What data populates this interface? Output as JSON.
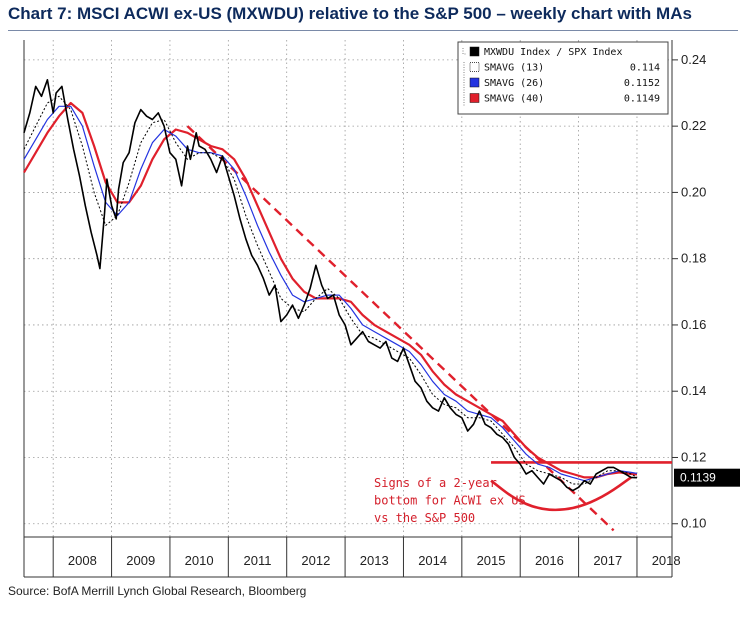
{
  "title": "Chart 7: MSCI ACWI ex-US (MXWDU) relative to the S&P 500 – weekly chart with MAs",
  "source": "Source: BofA Merrill Lynch Global Research, Bloomberg",
  "colors": {
    "title": "#0d2a5c",
    "ratio": "#000000",
    "sma13": "#000000",
    "sma26": "#2434e0",
    "sma40": "#e0202c",
    "annotation": "#e0202c",
    "last_value_box": "#000000"
  },
  "chart_data": {
    "type": "line",
    "x_range": [
      2007.5,
      2018.6
    ],
    "ylim": [
      0.096,
      0.246
    ],
    "y_ticks": [
      0.1,
      0.12,
      0.14,
      0.16,
      0.18,
      0.2,
      0.22,
      0.24
    ],
    "y_tick_labels": [
      "0.10",
      "0.12",
      "0.14",
      "0.16",
      "0.18",
      "0.20",
      "0.22",
      "0.24"
    ],
    "x_tick_labels": [
      "2008",
      "2009",
      "2010",
      "2011",
      "2012",
      "2013",
      "2014",
      "2015",
      "2016",
      "2017",
      "2018"
    ],
    "grid": true,
    "legend_position": "top-right",
    "legend": [
      {
        "name": "MXWDU Index / SPX Index",
        "value": ""
      },
      {
        "name": "SMAVG (13)",
        "value": "0.114"
      },
      {
        "name": "SMAVG (26)",
        "value": "0.1152"
      },
      {
        "name": "SMAVG (40)",
        "value": "0.1149"
      }
    ],
    "last_value_label": "0.1139",
    "annotation": {
      "lines": [
        "Signs of a 2-year",
        "bottom for ACWI ex US",
        "vs the S&P 500"
      ]
    },
    "series": [
      {
        "name": "MXWDU Index / SPX Index",
        "x": [
          2007.5,
          2007.6,
          2007.7,
          2007.8,
          2007.9,
          2008.0,
          2008.05,
          2008.15,
          2008.25,
          2008.35,
          2008.45,
          2008.55,
          2008.65,
          2008.75,
          2008.8,
          2008.88,
          2008.92,
          2009.0,
          2009.08,
          2009.12,
          2009.2,
          2009.3,
          2009.4,
          2009.5,
          2009.6,
          2009.7,
          2009.8,
          2009.9,
          2010.0,
          2010.1,
          2010.2,
          2010.3,
          2010.35,
          2010.45,
          2010.5,
          2010.6,
          2010.7,
          2010.8,
          2010.9,
          2011.0,
          2011.1,
          2011.2,
          2011.3,
          2011.4,
          2011.5,
          2011.6,
          2011.7,
          2011.8,
          2011.9,
          2012.0,
          2012.1,
          2012.2,
          2012.3,
          2012.4,
          2012.5,
          2012.6,
          2012.7,
          2012.8,
          2012.9,
          2013.0,
          2013.1,
          2013.2,
          2013.3,
          2013.4,
          2013.5,
          2013.6,
          2013.7,
          2013.8,
          2013.9,
          2014.0,
          2014.1,
          2014.2,
          2014.3,
          2014.4,
          2014.5,
          2014.6,
          2014.7,
          2014.8,
          2014.9,
          2015.0,
          2015.1,
          2015.2,
          2015.3,
          2015.4,
          2015.5,
          2015.6,
          2015.7,
          2015.8,
          2015.9,
          2016.0,
          2016.1,
          2016.2,
          2016.3,
          2016.4,
          2016.5,
          2016.6,
          2016.7,
          2016.8,
          2016.9,
          2017.0,
          2017.1,
          2017.2,
          2017.3,
          2017.4,
          2017.5,
          2017.6,
          2017.7,
          2017.8,
          2017.9,
          2018.0
        ],
        "y": [
          0.218,
          0.224,
          0.232,
          0.229,
          0.234,
          0.224,
          0.23,
          0.232,
          0.222,
          0.213,
          0.205,
          0.196,
          0.188,
          0.181,
          0.177,
          0.194,
          0.204,
          0.196,
          0.192,
          0.201,
          0.209,
          0.212,
          0.221,
          0.225,
          0.223,
          0.222,
          0.224,
          0.22,
          0.212,
          0.21,
          0.202,
          0.214,
          0.21,
          0.218,
          0.214,
          0.213,
          0.21,
          0.206,
          0.211,
          0.205,
          0.199,
          0.192,
          0.186,
          0.181,
          0.178,
          0.174,
          0.169,
          0.172,
          0.161,
          0.163,
          0.166,
          0.162,
          0.166,
          0.171,
          0.178,
          0.172,
          0.168,
          0.169,
          0.163,
          0.16,
          0.154,
          0.156,
          0.158,
          0.155,
          0.154,
          0.153,
          0.155,
          0.15,
          0.149,
          0.153,
          0.148,
          0.143,
          0.141,
          0.137,
          0.135,
          0.134,
          0.138,
          0.135,
          0.133,
          0.132,
          0.128,
          0.13,
          0.134,
          0.13,
          0.129,
          0.127,
          0.126,
          0.124,
          0.12,
          0.118,
          0.115,
          0.116,
          0.114,
          0.112,
          0.115,
          0.114,
          0.113,
          0.111,
          0.11,
          0.111,
          0.113,
          0.112,
          0.115,
          0.116,
          0.117,
          0.117,
          0.116,
          0.115,
          0.114,
          0.1139
        ]
      },
      {
        "name": "SMAVG (13)",
        "x": [
          2007.5,
          2007.7,
          2007.9,
          2008.1,
          2008.3,
          2008.5,
          2008.7,
          2008.9,
          2009.1,
          2009.3,
          2009.5,
          2009.7,
          2009.9,
          2010.1,
          2010.3,
          2010.5,
          2010.7,
          2010.9,
          2011.1,
          2011.3,
          2011.5,
          2011.7,
          2011.9,
          2012.1,
          2012.3,
          2012.5,
          2012.7,
          2012.9,
          2013.1,
          2013.3,
          2013.5,
          2013.7,
          2013.9,
          2014.1,
          2014.3,
          2014.5,
          2014.7,
          2014.9,
          2015.1,
          2015.3,
          2015.5,
          2015.7,
          2015.9,
          2016.1,
          2016.3,
          2016.5,
          2016.7,
          2016.9,
          2017.1,
          2017.3,
          2017.5,
          2017.7,
          2017.9,
          2018.0
        ],
        "y": [
          0.213,
          0.22,
          0.227,
          0.229,
          0.225,
          0.214,
          0.2,
          0.19,
          0.193,
          0.203,
          0.215,
          0.221,
          0.222,
          0.215,
          0.21,
          0.212,
          0.212,
          0.21,
          0.204,
          0.193,
          0.184,
          0.176,
          0.168,
          0.165,
          0.164,
          0.168,
          0.171,
          0.168,
          0.162,
          0.157,
          0.156,
          0.154,
          0.152,
          0.15,
          0.145,
          0.139,
          0.136,
          0.135,
          0.132,
          0.132,
          0.131,
          0.127,
          0.123,
          0.118,
          0.116,
          0.115,
          0.114,
          0.112,
          0.112,
          0.114,
          0.116,
          0.116,
          0.115,
          0.114
        ]
      },
      {
        "name": "SMAVG (26)",
        "x": [
          2007.5,
          2007.7,
          2007.9,
          2008.1,
          2008.3,
          2008.5,
          2008.7,
          2008.9,
          2009.1,
          2009.3,
          2009.5,
          2009.7,
          2009.9,
          2010.1,
          2010.3,
          2010.5,
          2010.7,
          2010.9,
          2011.1,
          2011.3,
          2011.5,
          2011.7,
          2011.9,
          2012.1,
          2012.3,
          2012.5,
          2012.7,
          2012.9,
          2013.1,
          2013.3,
          2013.5,
          2013.7,
          2013.9,
          2014.1,
          2014.3,
          2014.5,
          2014.7,
          2014.9,
          2015.1,
          2015.3,
          2015.5,
          2015.7,
          2015.9,
          2016.1,
          2016.3,
          2016.5,
          2016.7,
          2016.9,
          2017.1,
          2017.3,
          2017.5,
          2017.7,
          2017.9,
          2018.0
        ],
        "y": [
          0.21,
          0.216,
          0.222,
          0.226,
          0.226,
          0.22,
          0.208,
          0.197,
          0.193,
          0.197,
          0.207,
          0.215,
          0.219,
          0.217,
          0.213,
          0.212,
          0.212,
          0.211,
          0.207,
          0.199,
          0.19,
          0.182,
          0.175,
          0.169,
          0.167,
          0.168,
          0.169,
          0.169,
          0.165,
          0.16,
          0.158,
          0.156,
          0.154,
          0.152,
          0.148,
          0.143,
          0.139,
          0.137,
          0.134,
          0.133,
          0.132,
          0.129,
          0.125,
          0.121,
          0.118,
          0.117,
          0.115,
          0.114,
          0.113,
          0.114,
          0.115,
          0.116,
          0.1155,
          0.1152
        ]
      },
      {
        "name": "SMAVG (40)",
        "x": [
          2007.5,
          2007.7,
          2007.9,
          2008.1,
          2008.3,
          2008.5,
          2008.7,
          2008.9,
          2009.1,
          2009.3,
          2009.5,
          2009.7,
          2009.9,
          2010.1,
          2010.3,
          2010.5,
          2010.7,
          2010.9,
          2011.1,
          2011.3,
          2011.5,
          2011.7,
          2011.9,
          2012.1,
          2012.3,
          2012.5,
          2012.7,
          2012.9,
          2013.1,
          2013.3,
          2013.5,
          2013.7,
          2013.9,
          2014.1,
          2014.3,
          2014.5,
          2014.7,
          2014.9,
          2015.1,
          2015.3,
          2015.5,
          2015.7,
          2015.9,
          2016.1,
          2016.3,
          2016.5,
          2016.7,
          2016.9,
          2017.1,
          2017.3,
          2017.5,
          2017.7,
          2017.9,
          2018.0
        ],
        "y": [
          0.206,
          0.212,
          0.218,
          0.223,
          0.227,
          0.224,
          0.214,
          0.203,
          0.197,
          0.197,
          0.202,
          0.21,
          0.216,
          0.219,
          0.218,
          0.216,
          0.214,
          0.213,
          0.21,
          0.204,
          0.196,
          0.188,
          0.18,
          0.174,
          0.17,
          0.168,
          0.168,
          0.168,
          0.167,
          0.163,
          0.16,
          0.158,
          0.156,
          0.154,
          0.151,
          0.146,
          0.142,
          0.139,
          0.137,
          0.135,
          0.133,
          0.131,
          0.127,
          0.123,
          0.12,
          0.118,
          0.116,
          0.115,
          0.114,
          0.114,
          0.115,
          0.1155,
          0.115,
          0.1149
        ]
      }
    ],
    "annotation_shapes": {
      "trendline": {
        "x": [
          2010.3,
          2017.6
        ],
        "y": [
          0.22,
          0.098
        ]
      },
      "resistance": {
        "x": [
          2015.5,
          2018.6
        ],
        "y": [
          0.1185,
          0.1185
        ]
      },
      "bottom_arc": {
        "x": [
          2015.5,
          2015.9,
          2016.3,
          2016.7,
          2017.1,
          2017.5,
          2017.9
        ],
        "y": [
          0.113,
          0.1075,
          0.1045,
          0.104,
          0.1055,
          0.109,
          0.114
        ]
      }
    }
  }
}
